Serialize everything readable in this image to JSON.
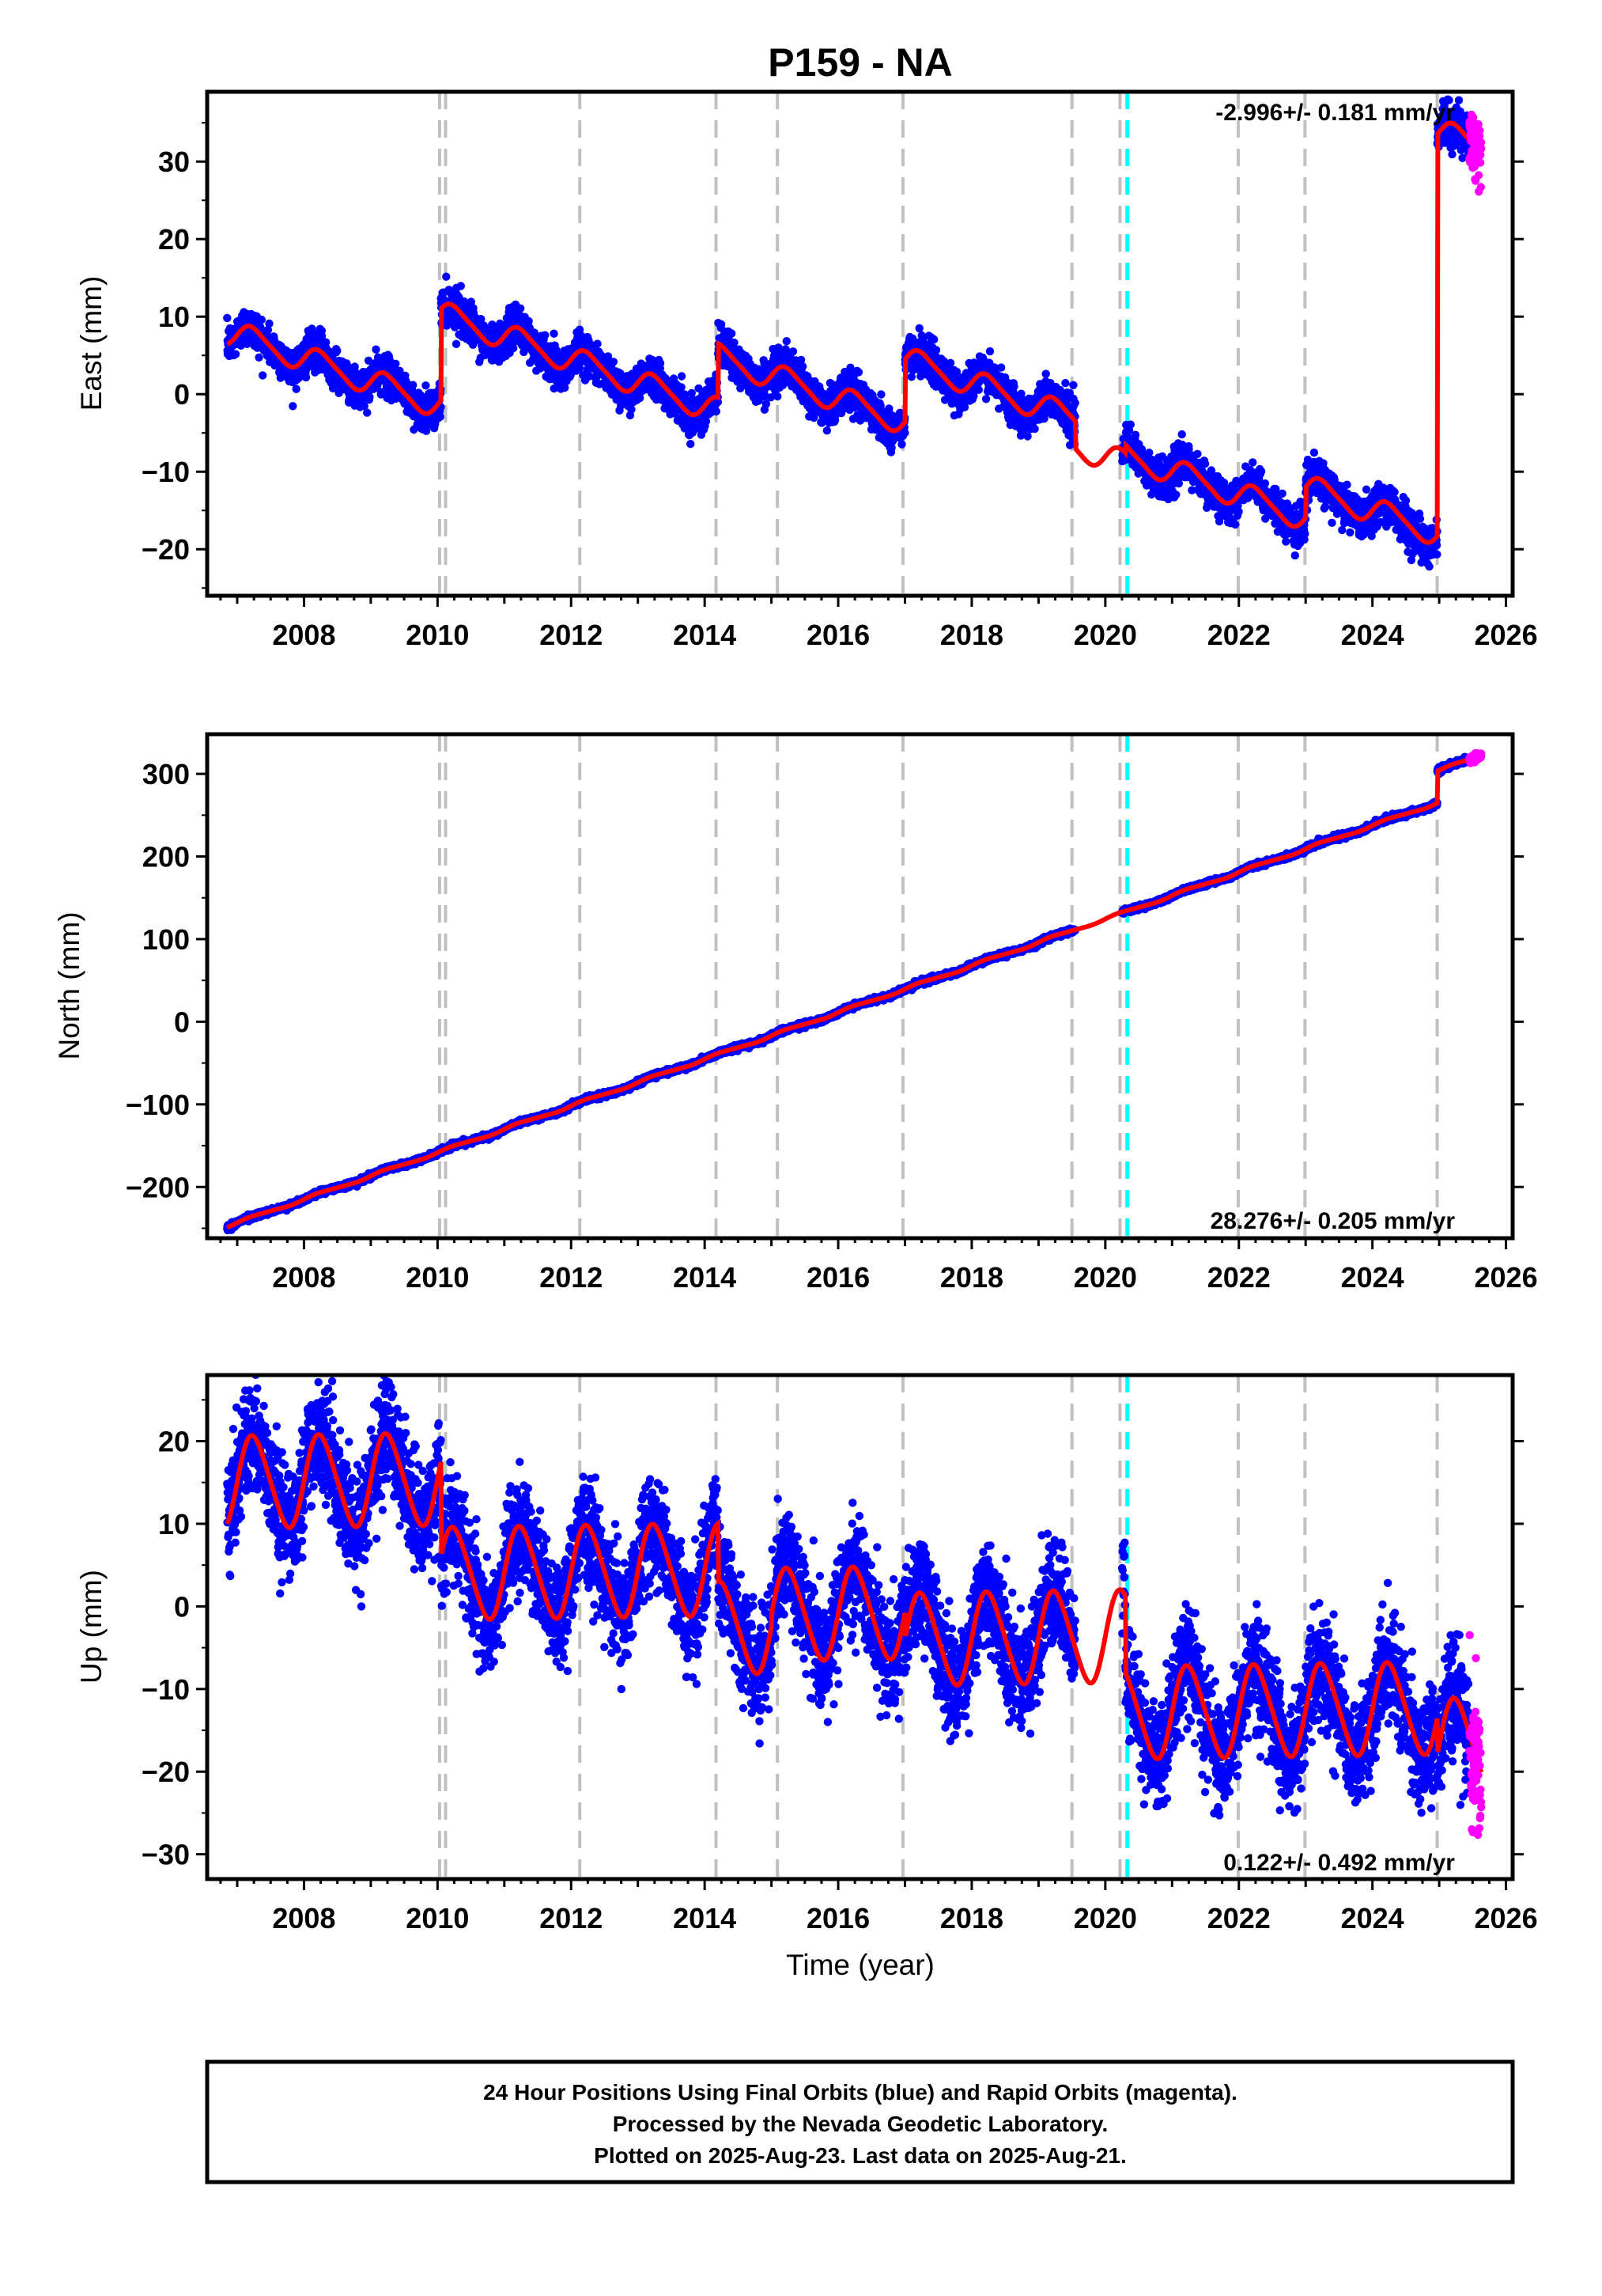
{
  "chart_data": [
    {
      "type": "scatter",
      "title": "P159 - NA",
      "ylabel": "East (mm)",
      "xlabel": "",
      "xlim": [
        2006.55,
        2026.1
      ],
      "ylim": [
        -26,
        39
      ],
      "x_ticks": [
        2008,
        2010,
        2012,
        2014,
        2016,
        2018,
        2020,
        2022,
        2024,
        2026
      ],
      "y_ticks": [
        -20,
        -10,
        0,
        10,
        20,
        30
      ],
      "rate_label": "-2.996+/- 0.181 mm/yr",
      "rate_position": "top-right",
      "grid": false,
      "data_range": [
        2006.85,
        2025.63
      ],
      "gap": [
        2019.55,
        2020.25
      ],
      "colors": {
        "final": "#0000ff",
        "rapid": "#ff00ff",
        "model": "#ff0000",
        "offsets": "#c0c0c0",
        "equip": "#00ffff"
      },
      "model_params": {
        "rate": -2.996,
        "annual_amp": 1.6,
        "semi_amp": 0.3,
        "noise": 1.2
      },
      "model_segments": [
        {
          "start": 2006.85,
          "value": 6.5
        },
        {
          "start": 2010.05,
          "value": 11.0
        },
        {
          "start": 2014.2,
          "value": 6.5
        },
        {
          "start": 2017.0,
          "value": 4.5
        },
        {
          "start": 2019.55,
          "value": -7.0
        },
        {
          "start": 2020.3,
          "value": -6.5
        },
        {
          "start": 2023.0,
          "value": -12.0
        },
        {
          "start": 2024.97,
          "value": 33.5
        }
      ],
      "series": [
        {
          "key": "final",
          "label": "Final Orbits",
          "role": "blue dots"
        },
        {
          "key": "rapid",
          "label": "Rapid Orbits",
          "role": "magenta dots"
        },
        {
          "key": "model",
          "role": "red fit line"
        }
      ]
    },
    {
      "type": "scatter",
      "title": "",
      "ylabel": "North (mm)",
      "xlabel": "",
      "xlim": [
        2006.55,
        2026.1
      ],
      "ylim": [
        -262,
        348
      ],
      "x_ticks": [
        2008,
        2010,
        2012,
        2014,
        2016,
        2018,
        2020,
        2022,
        2024,
        2026
      ],
      "y_ticks": [
        -200,
        -100,
        0,
        100,
        200,
        300
      ],
      "rate_label": "28.276+/- 0.205 mm/yr",
      "rate_position": "bottom-right",
      "grid": false,
      "data_range": [
        2006.85,
        2025.63
      ],
      "gap": [
        2019.55,
        2020.25
      ],
      "colors": {
        "final": "#0000ff",
        "rapid": "#ff00ff",
        "model": "#ff0000",
        "offsets": "#c0c0c0",
        "equip": "#00ffff"
      },
      "model_params": {
        "rate": 28.276,
        "annual_amp": 1.5,
        "semi_amp": 0.3,
        "noise": 1.5
      },
      "model_segments": [
        {
          "start": 2006.85,
          "value": -249
        },
        {
          "start": 2024.97,
          "value": 303
        }
      ],
      "series": [
        {
          "key": "final",
          "label": "Final Orbits",
          "role": "blue dots"
        },
        {
          "key": "rapid",
          "label": "Rapid Orbits",
          "role": "magenta dots"
        },
        {
          "key": "model",
          "role": "red fit line"
        }
      ]
    },
    {
      "type": "scatter",
      "title": "",
      "ylabel": "Up (mm)",
      "xlabel": "Time (year)",
      "xlim": [
        2006.55,
        2026.1
      ],
      "ylim": [
        -33,
        28
      ],
      "x_ticks": [
        2008,
        2010,
        2012,
        2014,
        2016,
        2018,
        2020,
        2022,
        2024,
        2026
      ],
      "y_ticks": [
        -30,
        -20,
        -10,
        0,
        10,
        20
      ],
      "rate_label": "0.122+/- 0.492 mm/yr",
      "rate_position": "bottom-right",
      "grid": false,
      "data_range": [
        2006.85,
        2025.63
      ],
      "gap": [
        2019.55,
        2020.25
      ],
      "colors": {
        "final": "#0000ff",
        "rapid": "#ff00ff",
        "model": "#ff0000",
        "offsets": "#c0c0c0",
        "equip": "#00ffff"
      },
      "model_params": {
        "rate": 0.122,
        "annual_amp": 5.5,
        "semi_amp": 0.6,
        "noise": 3.2
      },
      "model_segments": [
        {
          "start": 2006.85,
          "value": 10
        },
        {
          "start": 2010.05,
          "value": 6
        },
        {
          "start": 2014.2,
          "value": 3
        },
        {
          "start": 2015.0,
          "value": -1
        },
        {
          "start": 2017.0,
          "value": -4
        },
        {
          "start": 2020.3,
          "value": -8
        },
        {
          "start": 2024.97,
          "value": -18
        }
      ],
      "series": [
        {
          "key": "final",
          "label": "Final Orbits",
          "role": "blue dots"
        },
        {
          "key": "rapid",
          "label": "Rapid Orbits",
          "role": "magenta dots"
        },
        {
          "key": "model",
          "role": "red fit line"
        }
      ]
    }
  ],
  "offset_lines": {
    "gray_dashed_years": [
      2010.03,
      2010.12,
      2012.13,
      2014.17,
      2015.09,
      2016.97,
      2019.5,
      2020.22,
      2021.99,
      2022.99,
      2024.97
    ],
    "cyan_dashed_years": [
      2020.33
    ]
  },
  "caption": {
    "lines": [
      "24 Hour Positions Using Final Orbits (blue) and Rapid Orbits (magenta).",
      "Processed by the Nevada Geodetic Laboratory.",
      "Plotted on 2025-Aug-23. Last data on 2025-Aug-21."
    ]
  }
}
